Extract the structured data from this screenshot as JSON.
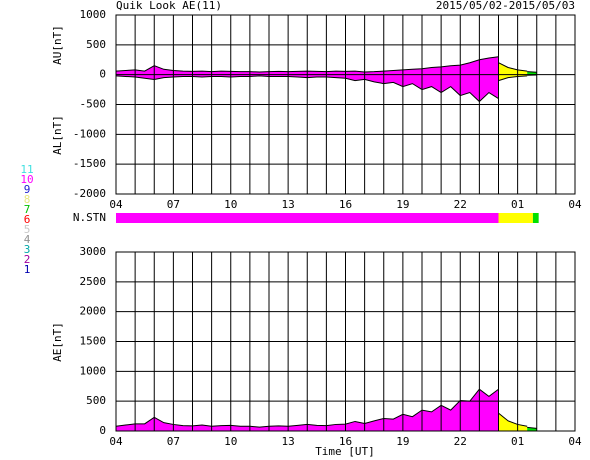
{
  "title": "Quik Look AE(11)",
  "date_range": "2015/05/02-2015/05/03",
  "station_legend": [
    {
      "label": "11",
      "color": "#40e0e0"
    },
    {
      "label": "10",
      "color": "#ff00ff"
    },
    {
      "label": "9",
      "color": "#2020d0"
    },
    {
      "label": "8",
      "color": "#e8e880"
    },
    {
      "label": "7",
      "color": "#00c000"
    },
    {
      "label": "6",
      "color": "#ff0000"
    },
    {
      "label": "5",
      "color": "#c8c8c8"
    },
    {
      "label": "4",
      "color": "#909090"
    },
    {
      "label": "3",
      "color": "#00a8a8"
    },
    {
      "label": "2",
      "color": "#a000a0"
    },
    {
      "label": "1",
      "color": "#0000b0"
    }
  ],
  "nstn": {
    "label": "N.STN",
    "segments": [
      {
        "start": 0,
        "end": 20,
        "color": "#ff00ff"
      },
      {
        "start": 20,
        "end": 21.8,
        "color": "#ffff00"
      },
      {
        "start": 21.8,
        "end": 22.1,
        "color": "#00e000"
      }
    ]
  },
  "chart_data": [
    {
      "type": "band",
      "ylabel_upper": "AU[nT]",
      "ylabel_lower": "AL[nT]",
      "xlim": [
        0,
        24
      ],
      "ylim": [
        -2000,
        1000
      ],
      "yticks": [
        1000,
        500,
        0,
        -500,
        -1000,
        -1500,
        -2000
      ],
      "xticks": [
        {
          "value": 0,
          "label": "04"
        },
        {
          "value": 3,
          "label": "07"
        },
        {
          "value": 6,
          "label": "10"
        },
        {
          "value": 9,
          "label": "13"
        },
        {
          "value": 12,
          "label": "16"
        },
        {
          "value": 15,
          "label": "19"
        },
        {
          "value": 18,
          "label": "22"
        },
        {
          "value": 21,
          "label": "01"
        },
        {
          "value": 24,
          "label": "04"
        }
      ],
      "xgrid": [
        0,
        1,
        2,
        3,
        4,
        5,
        6,
        7,
        8,
        9,
        10,
        11,
        12,
        13,
        14,
        15,
        16,
        17,
        18,
        19,
        20,
        21,
        22,
        23,
        24
      ],
      "series": [
        {
          "color": "#ff00ff",
          "x": [
            0,
            0.5,
            1,
            1.5,
            2,
            2.5,
            3,
            3.5,
            4,
            4.5,
            5,
            5.5,
            6,
            6.5,
            7,
            7.5,
            8,
            8.5,
            9,
            9.5,
            10,
            10.5,
            11,
            11.5,
            12,
            12.5,
            13,
            13.5,
            14,
            14.5,
            15,
            15.5,
            16,
            16.5,
            17,
            17.5,
            18,
            18.5,
            19,
            19.5,
            20
          ],
          "upper": [
            60,
            70,
            80,
            60,
            150,
            90,
            70,
            60,
            55,
            60,
            50,
            60,
            55,
            50,
            50,
            45,
            50,
            55,
            50,
            55,
            60,
            55,
            50,
            60,
            55,
            60,
            45,
            50,
            60,
            70,
            80,
            90,
            100,
            120,
            130,
            150,
            160,
            200,
            250,
            280,
            300
          ],
          "lower": [
            -20,
            -30,
            -40,
            -60,
            -80,
            -50,
            -40,
            -30,
            -30,
            -40,
            -30,
            -30,
            -40,
            -30,
            -30,
            -20,
            -30,
            -30,
            -30,
            -40,
            -50,
            -40,
            -40,
            -50,
            -60,
            -100,
            -80,
            -120,
            -150,
            -130,
            -200,
            -150,
            -250,
            -200,
            -300,
            -200,
            -350,
            -300,
            -450,
            -300,
            -400
          ]
        },
        {
          "color": "#ffff00",
          "x": [
            20,
            20.5,
            21,
            21.5
          ],
          "upper": [
            200,
            120,
            80,
            60
          ],
          "lower": [
            -100,
            -50,
            -30,
            -20
          ]
        },
        {
          "color": "#00e000",
          "x": [
            21.5,
            22
          ],
          "upper": [
            50,
            40
          ],
          "lower": [
            -10,
            -5
          ]
        }
      ]
    },
    {
      "type": "area",
      "ylabel": "AE[nT]",
      "xlabel": "Time [UT]",
      "xlim": [
        0,
        24
      ],
      "ylim": [
        0,
        3000
      ],
      "yticks": [
        3000,
        2500,
        2000,
        1500,
        1000,
        500,
        0
      ],
      "xticks": [
        {
          "value": 0,
          "label": "04"
        },
        {
          "value": 3,
          "label": "07"
        },
        {
          "value": 6,
          "label": "10"
        },
        {
          "value": 9,
          "label": "13"
        },
        {
          "value": 12,
          "label": "16"
        },
        {
          "value": 15,
          "label": "19"
        },
        {
          "value": 18,
          "label": "22"
        },
        {
          "value": 21,
          "label": "01"
        },
        {
          "value": 24,
          "label": "04"
        }
      ],
      "xgrid": [
        0,
        1,
        2,
        3,
        4,
        5,
        6,
        7,
        8,
        9,
        10,
        11,
        12,
        13,
        14,
        15,
        16,
        17,
        18,
        19,
        20,
        21,
        22,
        23,
        24
      ],
      "series": [
        {
          "color": "#ff00ff",
          "x": [
            0,
            0.5,
            1,
            1.5,
            2,
            2.5,
            3,
            3.5,
            4,
            4.5,
            5,
            5.5,
            6,
            6.5,
            7,
            7.5,
            8,
            8.5,
            9,
            9.5,
            10,
            10.5,
            11,
            11.5,
            12,
            12.5,
            13,
            13.5,
            14,
            14.5,
            15,
            15.5,
            16,
            16.5,
            17,
            17.5,
            18,
            18.5,
            19,
            19.5,
            20
          ],
          "values": [
            80,
            100,
            120,
            120,
            230,
            140,
            110,
            90,
            85,
            100,
            80,
            90,
            95,
            80,
            80,
            65,
            80,
            85,
            80,
            95,
            110,
            95,
            90,
            110,
            115,
            160,
            125,
            170,
            210,
            200,
            280,
            240,
            350,
            320,
            430,
            350,
            510,
            500,
            700,
            580,
            700
          ]
        },
        {
          "color": "#ffff00",
          "x": [
            20,
            20.5,
            21,
            21.5
          ],
          "values": [
            300,
            170,
            110,
            80
          ]
        },
        {
          "color": "#00e000",
          "x": [
            21.5,
            22
          ],
          "values": [
            60,
            45
          ]
        }
      ]
    }
  ]
}
